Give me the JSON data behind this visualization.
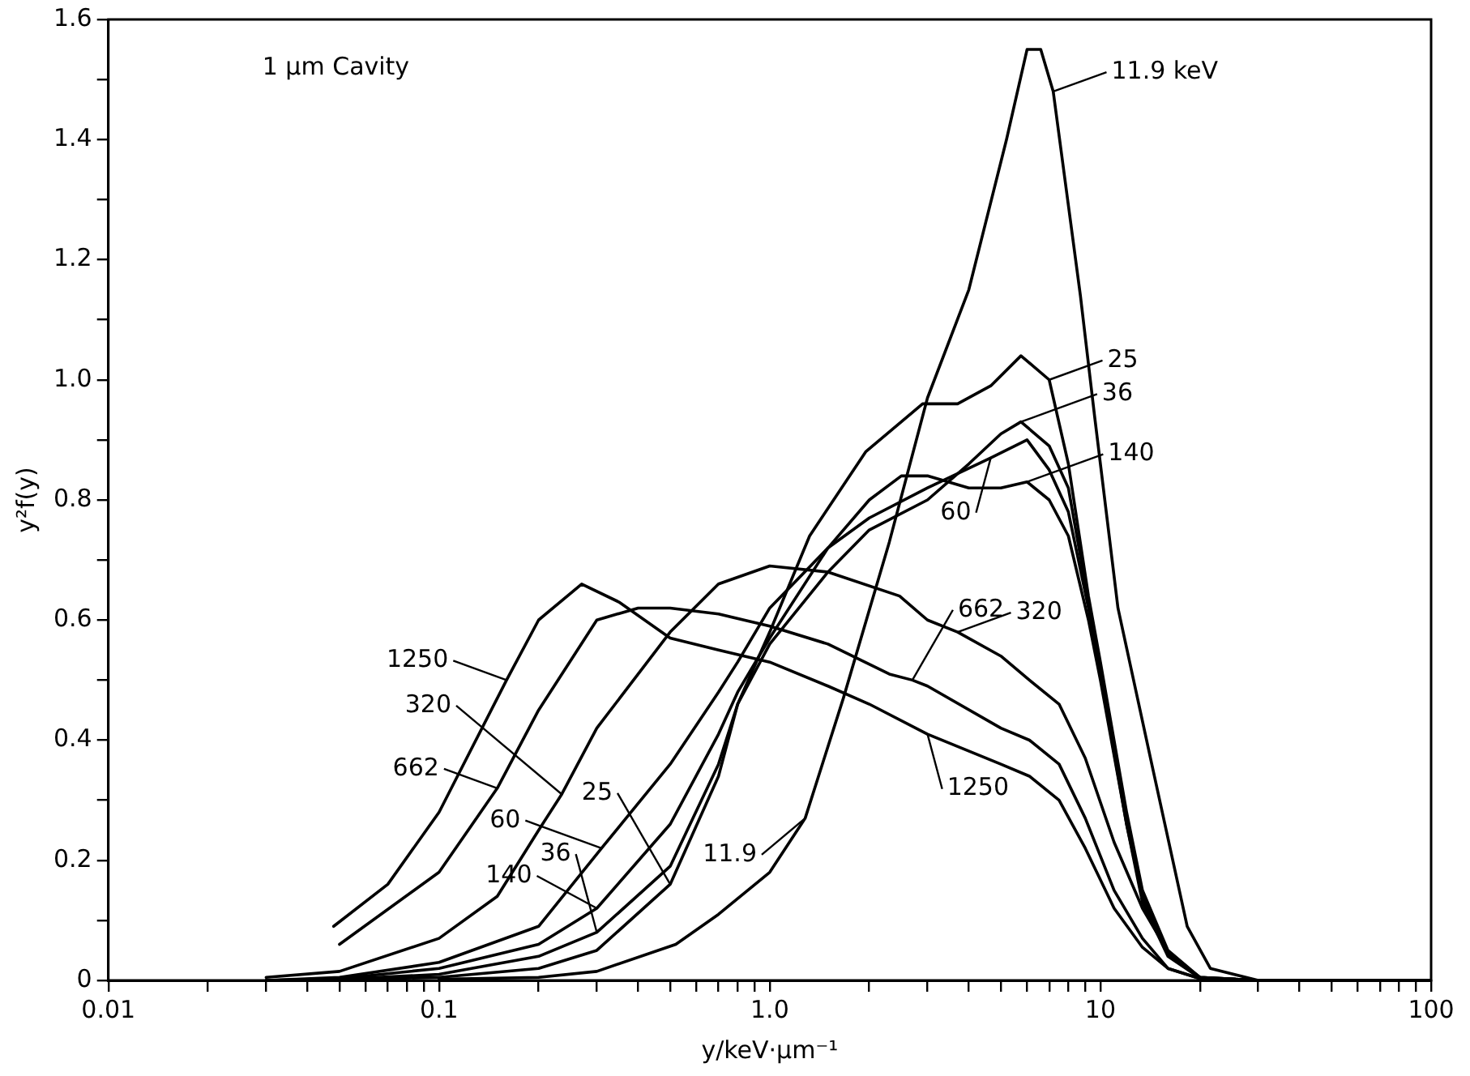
{
  "chart_data": {
    "type": "line",
    "xlabel": "y/keV·µm⁻¹",
    "ylabel": "y²f(y)",
    "log": "x",
    "xlim": [
      0.01,
      100
    ],
    "ylim": [
      0,
      1.6
    ],
    "xticks": [
      0.01,
      {
        "value": 0.02,
        "label": null
      },
      {
        "value": 0.03,
        "label": null
      },
      {
        "value": 0.04,
        "label": null
      },
      {
        "value": 0.05,
        "label": null
      },
      {
        "value": 0.06,
        "label": null
      },
      {
        "value": 0.07,
        "label": null
      },
      {
        "value": 0.08,
        "label": null
      },
      {
        "value": 0.09,
        "label": null
      },
      0.1,
      {
        "value": 0.2,
        "label": null
      },
      {
        "value": 0.3,
        "label": null
      },
      {
        "value": 0.4,
        "label": null
      },
      {
        "value": 0.5,
        "label": null
      },
      {
        "value": 0.6,
        "label": null
      },
      {
        "value": 0.7,
        "label": null
      },
      {
        "value": 0.8,
        "label": null
      },
      {
        "value": 0.9,
        "label": null
      },
      {
        "value": 1,
        "label": "1.0"
      },
      {
        "value": 2,
        "label": null
      },
      {
        "value": 3,
        "label": null
      },
      {
        "value": 4,
        "label": null
      },
      {
        "value": 5,
        "label": null
      },
      {
        "value": 6,
        "label": null
      },
      {
        "value": 7,
        "label": null
      },
      {
        "value": 8,
        "label": null
      },
      {
        "value": 9,
        "label": null
      },
      10,
      {
        "value": 20,
        "label": null
      },
      {
        "value": 30,
        "label": null
      },
      {
        "value": 40,
        "label": null
      },
      {
        "value": 50,
        "label": null
      },
      {
        "value": 60,
        "label": null
      },
      {
        "value": 70,
        "label": null
      },
      {
        "value": 80,
        "label": null
      },
      {
        "value": 90,
        "label": null
      },
      100
    ],
    "yticks": [
      0,
      {
        "value": 0.1,
        "label": null
      },
      0.2,
      {
        "value": 0.3,
        "label": null
      },
      0.4,
      {
        "value": 0.5,
        "label": null
      },
      0.6,
      {
        "value": 0.7,
        "label": null
      },
      0.8,
      {
        "value": 0.9,
        "label": null
      },
      {
        "value": 1,
        "label": "1.0"
      },
      {
        "value": 1.1,
        "label": null
      },
      1.2,
      {
        "value": 1.3,
        "label": null
      },
      1.4,
      {
        "value": 1.5,
        "label": null
      },
      1.6
    ],
    "grid": false,
    "legend": false,
    "marker": "none",
    "line_style": "solid",
    "series": [
      {
        "color": "#000000",
        "x": [
          0.1,
          0.2,
          0.3,
          0.52,
          0.7,
          1,
          1.28,
          1.67,
          2.3,
          3,
          4,
          5.2,
          6,
          6.6,
          7.2,
          8.7,
          9.6,
          11.3,
          14.3,
          18.3,
          21.5,
          30,
          100
        ],
        "values": [
          0.002,
          0.005,
          0.015,
          0.06,
          0.11,
          0.18,
          0.27,
          0.47,
          0.73,
          0.97,
          1.15,
          1.4,
          1.55,
          1.55,
          1.48,
          1.14,
          0.94,
          0.62,
          0.36,
          0.09,
          0.02,
          0,
          0
        ]
      },
      {
        "color": "#000000",
        "x": [
          0.03,
          0.05,
          0.1,
          0.2,
          0.3,
          0.5,
          0.7,
          0.8,
          1,
          1.32,
          1.95,
          2.9,
          3.7,
          4.66,
          5.75,
          7,
          8,
          9.2,
          10,
          12,
          13.4,
          16,
          20,
          30,
          100
        ],
        "values": [
          0,
          0.001,
          0.005,
          0.02,
          0.05,
          0.16,
          0.34,
          0.46,
          0.58,
          0.74,
          0.88,
          0.96,
          0.96,
          0.99,
          1.04,
          1.0,
          0.86,
          0.64,
          0.53,
          0.28,
          0.15,
          0.05,
          0.005,
          0,
          0
        ]
      },
      {
        "color": "#000000",
        "x": [
          0.03,
          0.05,
          0.1,
          0.2,
          0.3,
          0.5,
          0.7,
          0.8,
          1,
          1.5,
          2,
          3,
          4,
          5,
          5.75,
          7,
          8,
          9.2,
          10,
          12,
          13.4,
          16,
          20,
          30,
          100
        ],
        "values": [
          0,
          0.002,
          0.01,
          0.04,
          0.08,
          0.19,
          0.36,
          0.46,
          0.56,
          0.68,
          0.75,
          0.8,
          0.86,
          0.91,
          0.93,
          0.89,
          0.82,
          0.63,
          0.52,
          0.27,
          0.14,
          0.045,
          0.004,
          0,
          0
        ]
      },
      {
        "color": "#000000",
        "x": [
          0.03,
          0.05,
          0.1,
          0.2,
          0.31,
          0.5,
          0.7,
          0.8,
          1,
          1.5,
          2,
          3,
          4.66,
          6,
          7,
          8,
          9.2,
          10,
          12,
          13.4,
          16,
          20,
          30,
          100
        ],
        "values": [
          0,
          0.005,
          0.03,
          0.09,
          0.22,
          0.36,
          0.48,
          0.53,
          0.62,
          0.72,
          0.77,
          0.82,
          0.87,
          0.9,
          0.85,
          0.78,
          0.62,
          0.51,
          0.26,
          0.14,
          0.045,
          0.005,
          0,
          0
        ]
      },
      {
        "color": "#000000",
        "x": [
          0.03,
          0.05,
          0.1,
          0.2,
          0.3,
          0.5,
          0.7,
          0.8,
          1,
          1.5,
          2,
          2.5,
          3,
          4,
          5,
          6,
          7,
          8,
          9.2,
          10,
          12,
          13.4,
          16,
          20,
          30,
          100
        ],
        "values": [
          0,
          0.003,
          0.02,
          0.06,
          0.12,
          0.26,
          0.41,
          0.48,
          0.57,
          0.72,
          0.8,
          0.84,
          0.84,
          0.82,
          0.82,
          0.83,
          0.8,
          0.74,
          0.6,
          0.5,
          0.26,
          0.13,
          0.04,
          0.004,
          0,
          0
        ]
      },
      {
        "color": "#000000",
        "x": [
          0.03,
          0.05,
          0.1,
          0.15,
          0.2,
          0.235,
          0.3,
          0.5,
          0.7,
          1,
          1.5,
          2.47,
          3,
          3.7,
          5,
          6.1,
          7.5,
          9,
          11,
          13.4,
          16.3,
          20,
          30,
          100
        ],
        "values": [
          0.005,
          0.015,
          0.07,
          0.14,
          0.25,
          0.31,
          0.42,
          0.58,
          0.66,
          0.69,
          0.68,
          0.64,
          0.6,
          0.58,
          0.54,
          0.5,
          0.46,
          0.37,
          0.23,
          0.12,
          0.04,
          0.005,
          0,
          0
        ]
      },
      {
        "color": "#000000",
        "x": [
          0.05,
          0.1,
          0.15,
          0.2,
          0.3,
          0.4,
          0.5,
          0.7,
          1,
          1.5,
          2.3,
          2.7,
          3,
          5,
          6.1,
          7.5,
          9,
          11,
          13.4,
          16,
          20,
          30,
          100
        ],
        "values": [
          0.06,
          0.18,
          0.32,
          0.45,
          0.6,
          0.62,
          0.62,
          0.61,
          0.59,
          0.56,
          0.51,
          0.5,
          0.49,
          0.42,
          0.4,
          0.36,
          0.27,
          0.15,
          0.07,
          0.02,
          0.003,
          0,
          0
        ]
      },
      {
        "color": "#000000",
        "x": [
          0.048,
          0.07,
          0.1,
          0.16,
          0.2,
          0.27,
          0.35,
          0.5,
          0.7,
          1,
          1.5,
          2,
          3,
          5,
          6.1,
          7.5,
          9,
          11,
          13.4,
          16,
          20,
          30,
          100
        ],
        "values": [
          0.09,
          0.16,
          0.28,
          0.5,
          0.6,
          0.66,
          0.63,
          0.57,
          0.55,
          0.53,
          0.49,
          0.46,
          0.41,
          0.36,
          0.34,
          0.3,
          0.22,
          0.12,
          0.055,
          0.02,
          0.003,
          0,
          0
        ]
      }
    ],
    "annotations": [
      "1 µm Cavity",
      {
        "text": "11.9 keV",
        "x": 7.2,
        "y": 1.48
      },
      {
        "text": "25",
        "x": 7,
        "y": 1.0
      },
      {
        "text": "36",
        "x": 5.75,
        "y": 0.93
      },
      {
        "text": "60",
        "x": 4.66,
        "y": 0.87
      },
      {
        "text": "140",
        "x": 6,
        "y": 0.83
      },
      {
        "text": "320",
        "x": 3.7,
        "y": 0.58
      },
      {
        "text": "662",
        "x": 2.7,
        "y": 0.5
      },
      {
        "text": "1250",
        "x": 3,
        "y": 0.41
      },
      {
        "text": "11.9",
        "x": 1.28,
        "y": 0.27
      },
      {
        "text": "25",
        "x": 0.5,
        "y": 0.16
      },
      {
        "text": "36",
        "x": 0.3,
        "y": 0.08
      },
      {
        "text": "1250",
        "x": 0.16,
        "y": 0.5
      },
      {
        "text": "662",
        "x": 0.15,
        "y": 0.32
      },
      {
        "text": "320",
        "x": 0.235,
        "y": 0.31
      },
      {
        "text": "60",
        "x": 0.31,
        "y": 0.22
      },
      {
        "text": "140",
        "x": 0.3,
        "y": 0.12
      }
    ]
  }
}
